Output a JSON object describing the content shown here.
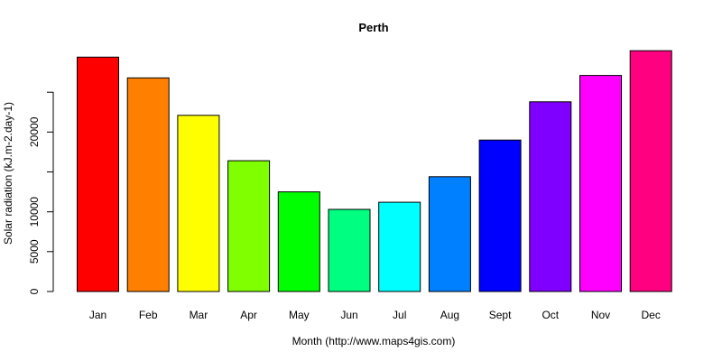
{
  "chart_data": {
    "type": "bar",
    "title": "Perth",
    "xlabel": "Month (http://www.maps4gis.com)",
    "ylabel": "Solar radiation (kJ.m-2.day-1)",
    "categories": [
      "Jan",
      "Feb",
      "Mar",
      "Apr",
      "May",
      "Jun",
      "Jul",
      "Aug",
      "Sept",
      "Oct",
      "Nov",
      "Dec"
    ],
    "values": [
      29400,
      26800,
      22100,
      16400,
      12500,
      10300,
      11200,
      14400,
      19000,
      23800,
      27100,
      30200
    ],
    "colors": [
      "#ff0000",
      "#ff8000",
      "#ffff00",
      "#80ff00",
      "#00ff00",
      "#00ff80",
      "#00ffff",
      "#0080ff",
      "#0000ff",
      "#8000ff",
      "#ff00ff",
      "#ff0080"
    ],
    "y_ticks": [
      {
        "value": 0,
        "label": "0"
      },
      {
        "value": 5000,
        "label": "5000"
      },
      {
        "value": 10000,
        "label": "10000"
      },
      {
        "value": 15000,
        "label": ""
      },
      {
        "value": 20000,
        "label": "20000"
      },
      {
        "value": 25000,
        "label": ""
      }
    ],
    "ylim": [
      0,
      30200
    ],
    "grid": false,
    "legend": "none"
  }
}
